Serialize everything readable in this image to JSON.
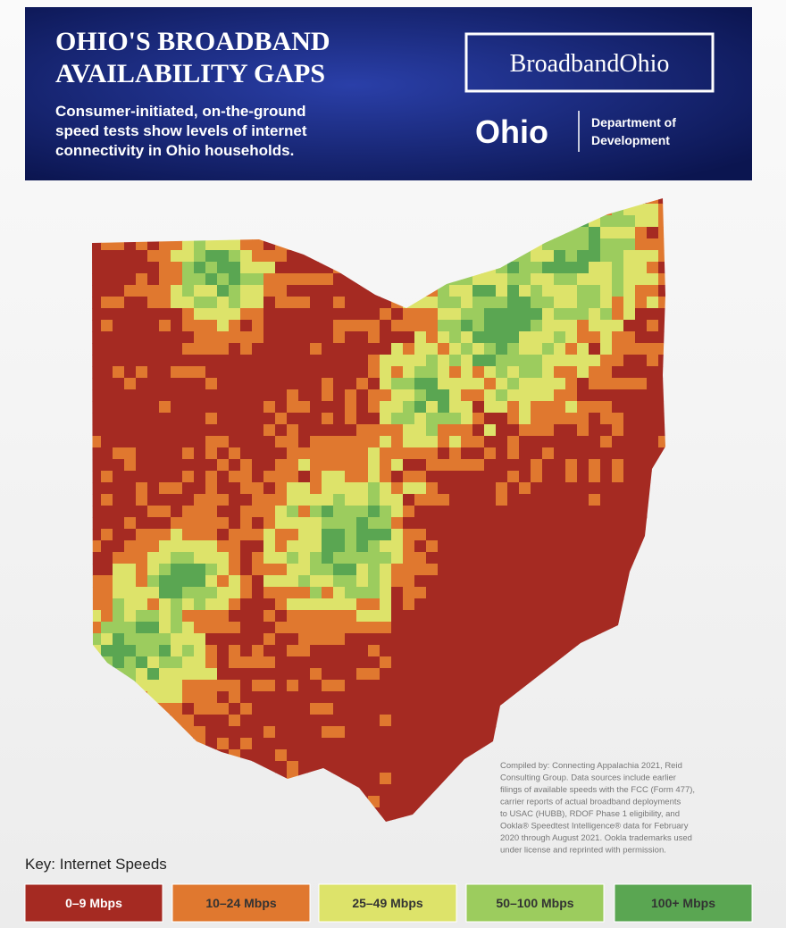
{
  "header": {
    "title_lines": [
      "OHIO'S BROADBAND",
      "AVAILABILITY GAPS"
    ],
    "subtitle_lines": [
      "Consumer-initiated, on-the-ground",
      "speed tests show levels of internet",
      "connectivity in Ohio households."
    ],
    "logo": "BroadbandOhio",
    "state": "Ohio",
    "department_lines": [
      "Department of",
      "Development"
    ]
  },
  "source_lines": [
    "Compiled by: Connecting Appalachia 2021, Reid",
    "Consulting Group. Data sources include earlier",
    "filings of available speeds with the FCC (Form 477),",
    "carrier reports of actual broadband deployments",
    "to USAC (HUBB), RDOF Phase 1 eligibility, and",
    "Ookla® Speedtest Intelligence® data for February",
    "2020 through August 2021. Ookla trademarks used",
    "under license and reprinted with permission."
  ],
  "key": {
    "title": "Key: Internet Speeds",
    "items": [
      {
        "label": "0–9 Mbps",
        "color": "#a52a22"
      },
      {
        "label": "10–24 Mbps",
        "color": "#e0782f"
      },
      {
        "label": "25–49 Mbps",
        "color": "#dde36a"
      },
      {
        "label": "50–100 Mbps",
        "color": "#9ccc5e"
      },
      {
        "label": "100+ Mbps",
        "color": "#5aa652"
      }
    ]
  }
}
